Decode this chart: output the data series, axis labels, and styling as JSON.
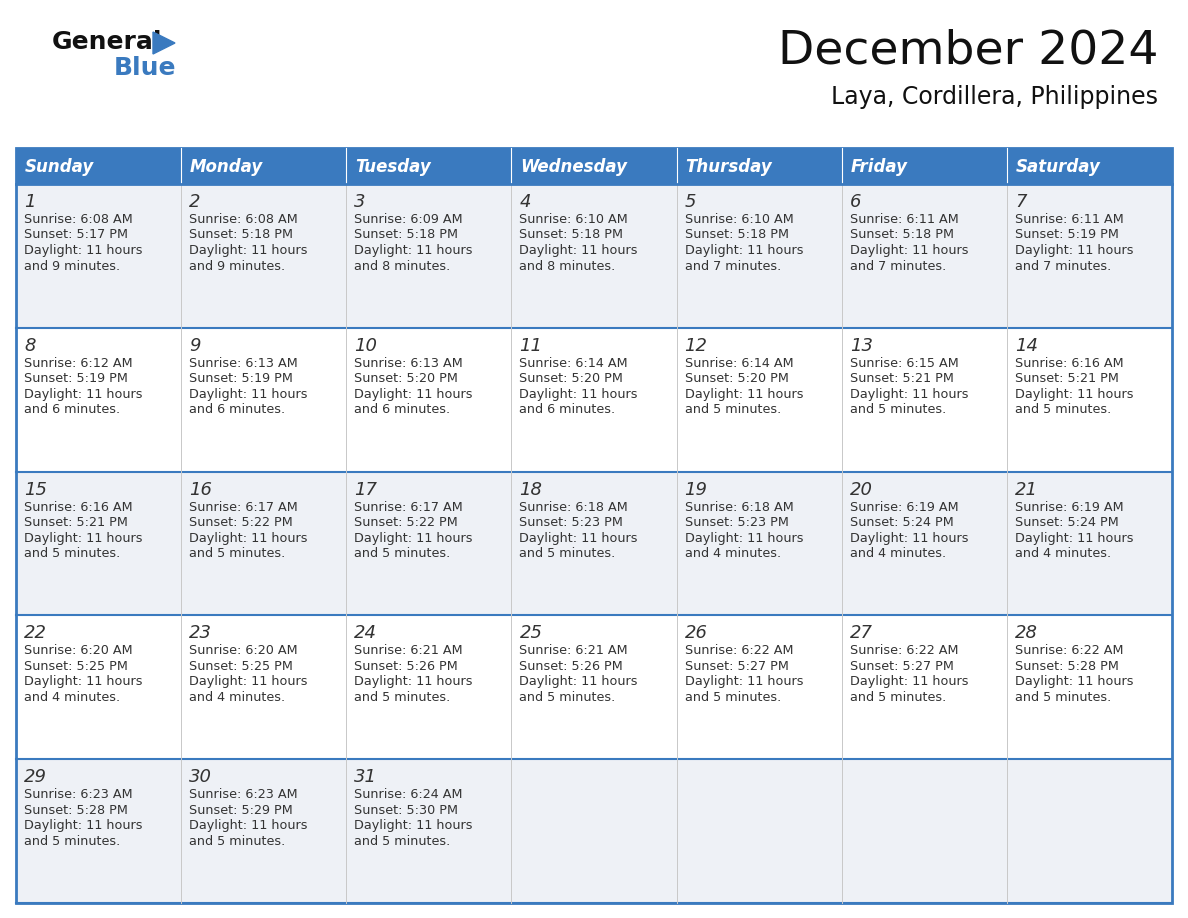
{
  "title": "December 2024",
  "subtitle": "Laya, Cordillera, Philippines",
  "header_color": "#3a7abf",
  "header_text_color": "#ffffff",
  "cell_bg_even": "#eef2f7",
  "cell_bg_odd": "#ffffff",
  "cell_bg_last": "#f5f7fa",
  "day_names": [
    "Sunday",
    "Monday",
    "Tuesday",
    "Wednesday",
    "Thursday",
    "Friday",
    "Saturday"
  ],
  "weeks": [
    [
      {
        "day": "1",
        "sunrise": "6:08 AM",
        "sunset": "5:17 PM",
        "daylight_h": "11 hours",
        "daylight_m": "and 9 minutes."
      },
      {
        "day": "2",
        "sunrise": "6:08 AM",
        "sunset": "5:18 PM",
        "daylight_h": "11 hours",
        "daylight_m": "and 9 minutes."
      },
      {
        "day": "3",
        "sunrise": "6:09 AM",
        "sunset": "5:18 PM",
        "daylight_h": "11 hours",
        "daylight_m": "and 8 minutes."
      },
      {
        "day": "4",
        "sunrise": "6:10 AM",
        "sunset": "5:18 PM",
        "daylight_h": "11 hours",
        "daylight_m": "and 8 minutes."
      },
      {
        "day": "5",
        "sunrise": "6:10 AM",
        "sunset": "5:18 PM",
        "daylight_h": "11 hours",
        "daylight_m": "and 7 minutes."
      },
      {
        "day": "6",
        "sunrise": "6:11 AM",
        "sunset": "5:18 PM",
        "daylight_h": "11 hours",
        "daylight_m": "and 7 minutes."
      },
      {
        "day": "7",
        "sunrise": "6:11 AM",
        "sunset": "5:19 PM",
        "daylight_h": "11 hours",
        "daylight_m": "and 7 minutes."
      }
    ],
    [
      {
        "day": "8",
        "sunrise": "6:12 AM",
        "sunset": "5:19 PM",
        "daylight_h": "11 hours",
        "daylight_m": "and 6 minutes."
      },
      {
        "day": "9",
        "sunrise": "6:13 AM",
        "sunset": "5:19 PM",
        "daylight_h": "11 hours",
        "daylight_m": "and 6 minutes."
      },
      {
        "day": "10",
        "sunrise": "6:13 AM",
        "sunset": "5:20 PM",
        "daylight_h": "11 hours",
        "daylight_m": "and 6 minutes."
      },
      {
        "day": "11",
        "sunrise": "6:14 AM",
        "sunset": "5:20 PM",
        "daylight_h": "11 hours",
        "daylight_m": "and 6 minutes."
      },
      {
        "day": "12",
        "sunrise": "6:14 AM",
        "sunset": "5:20 PM",
        "daylight_h": "11 hours",
        "daylight_m": "and 5 minutes."
      },
      {
        "day": "13",
        "sunrise": "6:15 AM",
        "sunset": "5:21 PM",
        "daylight_h": "11 hours",
        "daylight_m": "and 5 minutes."
      },
      {
        "day": "14",
        "sunrise": "6:16 AM",
        "sunset": "5:21 PM",
        "daylight_h": "11 hours",
        "daylight_m": "and 5 minutes."
      }
    ],
    [
      {
        "day": "15",
        "sunrise": "6:16 AM",
        "sunset": "5:21 PM",
        "daylight_h": "11 hours",
        "daylight_m": "and 5 minutes."
      },
      {
        "day": "16",
        "sunrise": "6:17 AM",
        "sunset": "5:22 PM",
        "daylight_h": "11 hours",
        "daylight_m": "and 5 minutes."
      },
      {
        "day": "17",
        "sunrise": "6:17 AM",
        "sunset": "5:22 PM",
        "daylight_h": "11 hours",
        "daylight_m": "and 5 minutes."
      },
      {
        "day": "18",
        "sunrise": "6:18 AM",
        "sunset": "5:23 PM",
        "daylight_h": "11 hours",
        "daylight_m": "and 5 minutes."
      },
      {
        "day": "19",
        "sunrise": "6:18 AM",
        "sunset": "5:23 PM",
        "daylight_h": "11 hours",
        "daylight_m": "and 4 minutes."
      },
      {
        "day": "20",
        "sunrise": "6:19 AM",
        "sunset": "5:24 PM",
        "daylight_h": "11 hours",
        "daylight_m": "and 4 minutes."
      },
      {
        "day": "21",
        "sunrise": "6:19 AM",
        "sunset": "5:24 PM",
        "daylight_h": "11 hours",
        "daylight_m": "and 4 minutes."
      }
    ],
    [
      {
        "day": "22",
        "sunrise": "6:20 AM",
        "sunset": "5:25 PM",
        "daylight_h": "11 hours",
        "daylight_m": "and 4 minutes."
      },
      {
        "day": "23",
        "sunrise": "6:20 AM",
        "sunset": "5:25 PM",
        "daylight_h": "11 hours",
        "daylight_m": "and 4 minutes."
      },
      {
        "day": "24",
        "sunrise": "6:21 AM",
        "sunset": "5:26 PM",
        "daylight_h": "11 hours",
        "daylight_m": "and 5 minutes."
      },
      {
        "day": "25",
        "sunrise": "6:21 AM",
        "sunset": "5:26 PM",
        "daylight_h": "11 hours",
        "daylight_m": "and 5 minutes."
      },
      {
        "day": "26",
        "sunrise": "6:22 AM",
        "sunset": "5:27 PM",
        "daylight_h": "11 hours",
        "daylight_m": "and 5 minutes."
      },
      {
        "day": "27",
        "sunrise": "6:22 AM",
        "sunset": "5:27 PM",
        "daylight_h": "11 hours",
        "daylight_m": "and 5 minutes."
      },
      {
        "day": "28",
        "sunrise": "6:22 AM",
        "sunset": "5:28 PM",
        "daylight_h": "11 hours",
        "daylight_m": "and 5 minutes."
      }
    ],
    [
      {
        "day": "29",
        "sunrise": "6:23 AM",
        "sunset": "5:28 PM",
        "daylight_h": "11 hours",
        "daylight_m": "and 5 minutes."
      },
      {
        "day": "30",
        "sunrise": "6:23 AM",
        "sunset": "5:29 PM",
        "daylight_h": "11 hours",
        "daylight_m": "and 5 minutes."
      },
      {
        "day": "31",
        "sunrise": "6:24 AM",
        "sunset": "5:30 PM",
        "daylight_h": "11 hours",
        "daylight_m": "and 5 minutes."
      },
      null,
      null,
      null,
      null
    ]
  ]
}
